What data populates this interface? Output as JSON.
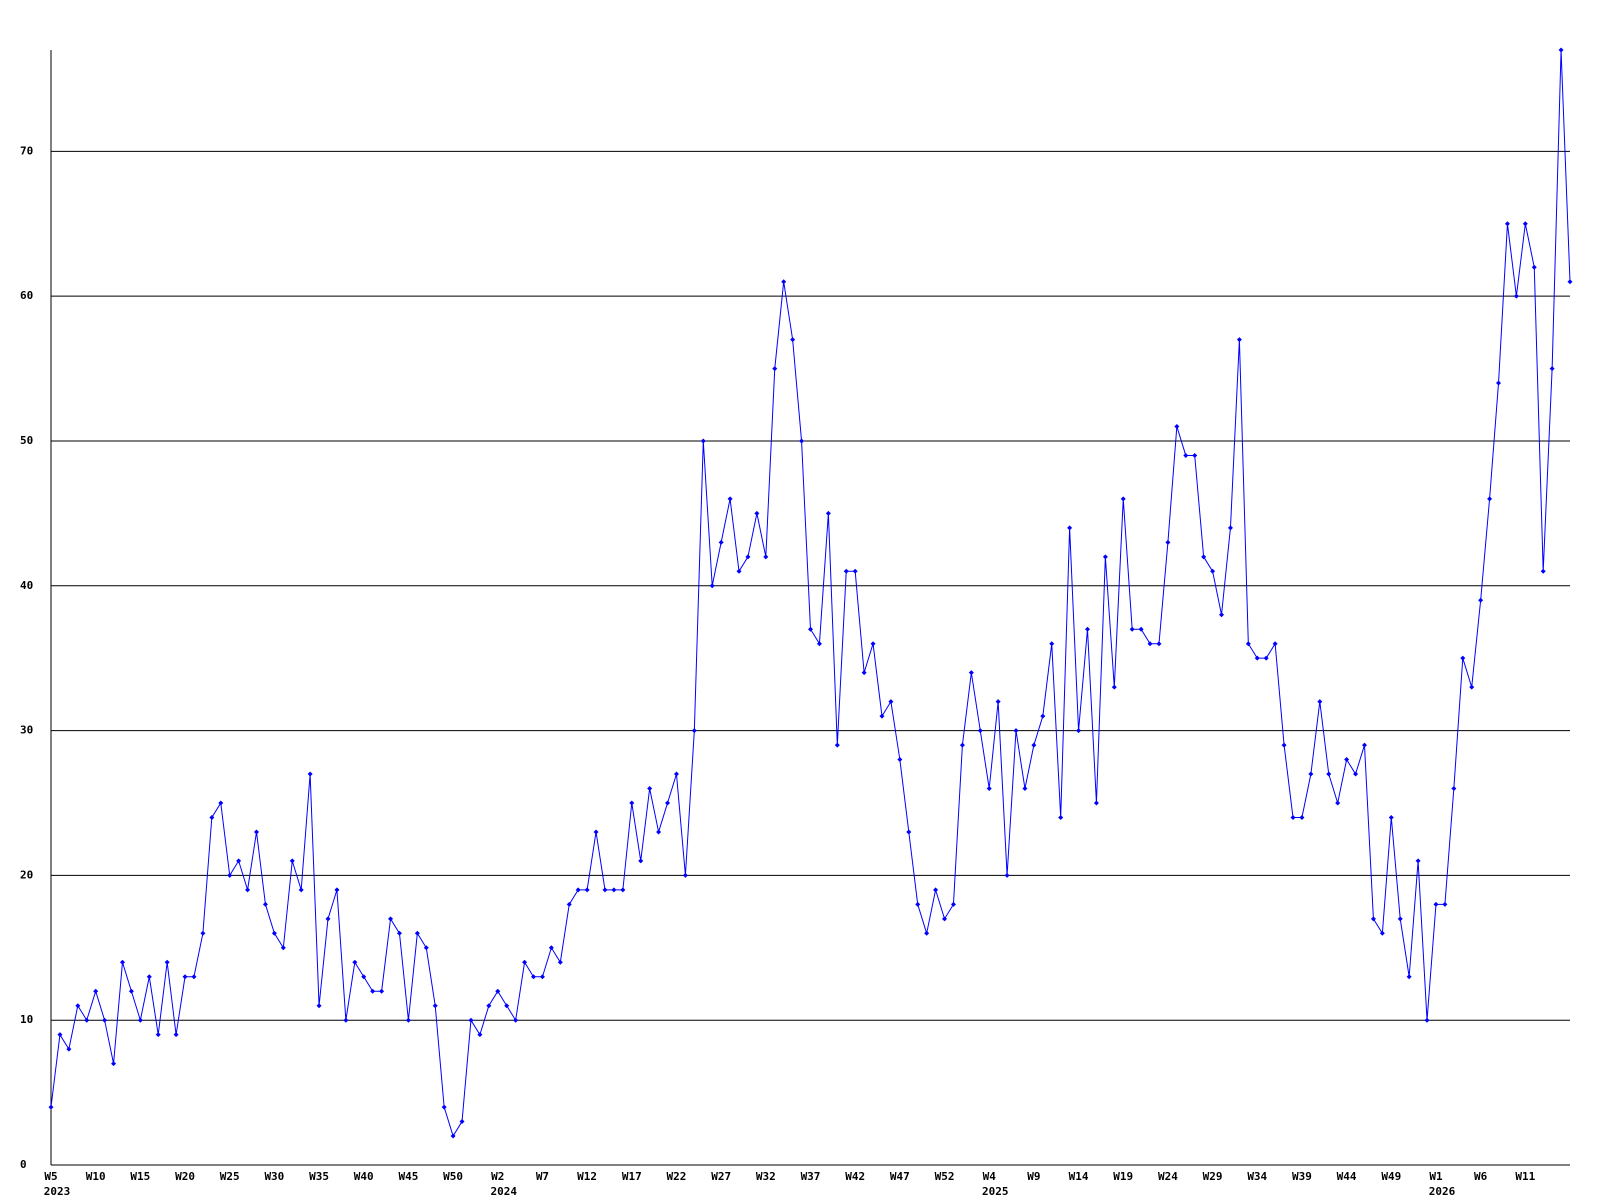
{
  "chart_data": {
    "type": "line",
    "categories": [
      "W5",
      null,
      null,
      null,
      null,
      "W10",
      null,
      null,
      null,
      null,
      "W15",
      null,
      null,
      null,
      null,
      "W20",
      null,
      null,
      null,
      null,
      "W25",
      null,
      null,
      null,
      null,
      "W30",
      null,
      null,
      null,
      null,
      "W35",
      null,
      null,
      null,
      null,
      "W40",
      null,
      null,
      null,
      null,
      "W45",
      null,
      null,
      null,
      null,
      "W50",
      null,
      null,
      null,
      null,
      "W2",
      null,
      null,
      null,
      null,
      "W7",
      null,
      null,
      null,
      null,
      "W12",
      null,
      null,
      null,
      null,
      "W17",
      null,
      null,
      null,
      null,
      "W22",
      null,
      null,
      null,
      null,
      "W27",
      null,
      null,
      null,
      null,
      "W32",
      null,
      null,
      null,
      null,
      "W37",
      null,
      null,
      null,
      null,
      "W42",
      null,
      null,
      null,
      null,
      "W47",
      null,
      null,
      null,
      null,
      "W52",
      null,
      null,
      null,
      null,
      "W4",
      null,
      null,
      null,
      null,
      "W9",
      null,
      null,
      null,
      null,
      "W14",
      null,
      null,
      null,
      null,
      "W19",
      null,
      null,
      null,
      null,
      "W24",
      null,
      null,
      null,
      null,
      "W29",
      null,
      null,
      null,
      null,
      "W34",
      null,
      null,
      null,
      null,
      "W39",
      null,
      null,
      null,
      null,
      "W44",
      null,
      null,
      null,
      null,
      "W49",
      null,
      null,
      null,
      null,
      "W1",
      null,
      null,
      null,
      null,
      "W6",
      null,
      null,
      null,
      null,
      "W11",
      null,
      null,
      null,
      null,
      null
    ],
    "category_years": [
      "2023",
      null,
      null,
      null,
      null,
      null,
      null,
      null,
      null,
      null,
      null,
      null,
      null,
      null,
      null,
      null,
      null,
      null,
      null,
      null,
      null,
      null,
      null,
      null,
      null,
      null,
      null,
      null,
      null,
      null,
      null,
      null,
      null,
      null,
      null,
      null,
      null,
      null,
      null,
      null,
      null,
      null,
      null,
      null,
      null,
      null,
      null,
      null,
      null,
      null,
      "2024",
      null,
      null,
      null,
      null,
      null,
      null,
      null,
      null,
      null,
      null,
      null,
      null,
      null,
      null,
      null,
      null,
      null,
      null,
      null,
      null,
      null,
      null,
      null,
      null,
      null,
      null,
      null,
      null,
      null,
      null,
      null,
      null,
      null,
      null,
      null,
      null,
      null,
      null,
      null,
      null,
      null,
      null,
      null,
      null,
      null,
      null,
      null,
      null,
      null,
      null,
      null,
      null,
      null,
      null,
      "2025",
      null,
      null,
      null,
      null,
      null,
      null,
      null,
      null,
      null,
      null,
      null,
      null,
      null,
      null,
      null,
      null,
      null,
      null,
      null,
      null,
      null,
      null,
      null,
      null,
      null,
      null,
      null,
      null,
      null,
      null,
      null,
      null,
      null,
      null,
      null,
      null,
      null,
      null,
      null,
      null,
      null,
      null,
      null,
      null,
      null,
      null,
      null,
      null,
      null,
      "2026",
      null,
      null,
      null,
      null,
      null,
      null,
      null,
      null,
      null,
      null,
      null,
      null,
      null,
      null,
      null
    ],
    "series": [
      {
        "color": "#0000ff",
        "values": [
          4,
          9,
          8,
          11,
          10,
          12,
          10,
          7,
          14,
          12,
          10,
          13,
          9,
          14,
          9,
          13,
          13,
          16,
          24,
          25,
          20,
          21,
          19,
          23,
          18,
          16,
          15,
          21,
          19,
          27,
          11,
          17,
          19,
          10,
          14,
          13,
          12,
          12,
          17,
          16,
          10,
          16,
          15,
          11,
          4,
          2,
          3,
          10,
          9,
          11,
          12,
          11,
          10,
          14,
          13,
          13,
          15,
          14,
          18,
          19,
          19,
          23,
          19,
          19,
          19,
          25,
          21,
          26,
          23,
          25,
          27,
          20,
          30,
          50,
          40,
          43,
          46,
          41,
          42,
          45,
          42,
          55,
          61,
          57,
          50,
          37,
          36,
          45,
          29,
          41,
          41,
          34,
          36,
          31,
          32,
          28,
          23,
          18,
          16,
          19,
          17,
          18,
          29,
          34,
          30,
          26,
          32,
          20,
          30,
          26,
          29,
          31,
          36,
          24,
          44,
          30,
          37,
          25,
          42,
          33,
          46,
          37,
          37,
          36,
          36,
          43,
          51,
          49,
          49,
          42,
          41,
          38,
          44,
          57,
          36,
          35,
          35,
          36,
          29,
          24,
          24,
          27,
          32,
          27,
          25,
          28,
          27,
          29,
          17,
          16,
          24,
          17,
          13,
          21,
          10,
          18,
          18,
          26,
          35,
          33,
          39,
          46,
          54,
          65,
          60,
          65,
          62,
          41,
          55,
          77,
          61
        ]
      }
    ],
    "ylim": [
      0,
      77
    ],
    "yticks": [
      0,
      10,
      20,
      30,
      40,
      50,
      60,
      70
    ],
    "grid": true
  }
}
